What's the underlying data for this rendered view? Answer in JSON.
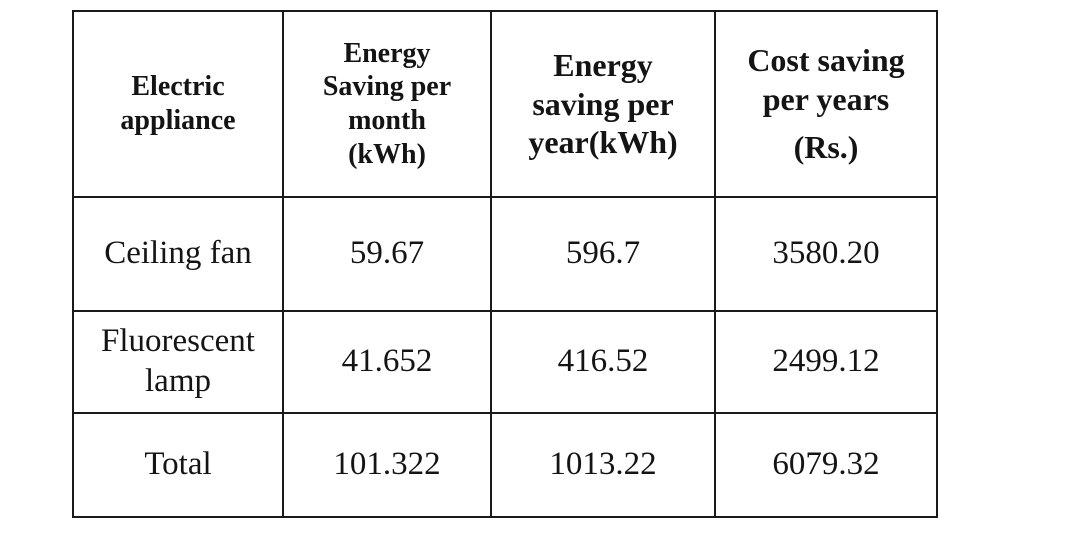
{
  "table": {
    "headers": [
      {
        "lines": [
          "Electric",
          "appliance"
        ]
      },
      {
        "lines": [
          "Energy",
          "Saving per",
          "month",
          "(kWh)"
        ]
      },
      {
        "lines": [
          "Energy",
          "saving per",
          "year(kWh)"
        ]
      },
      {
        "lines": [
          "Cost saving",
          "per years",
          "(Rs.)"
        ]
      }
    ],
    "rows": [
      {
        "appliance": [
          "Ceiling fan"
        ],
        "month": "59.67",
        "year": "596.7",
        "cost": "3580.20"
      },
      {
        "appliance": [
          "Fluorescent",
          "lamp"
        ],
        "month": "41.652",
        "year": "416.52",
        "cost": "2499.12"
      },
      {
        "appliance": [
          "Total"
        ],
        "month": "101.322",
        "year": "1013.22",
        "cost": "6079.32"
      }
    ]
  }
}
